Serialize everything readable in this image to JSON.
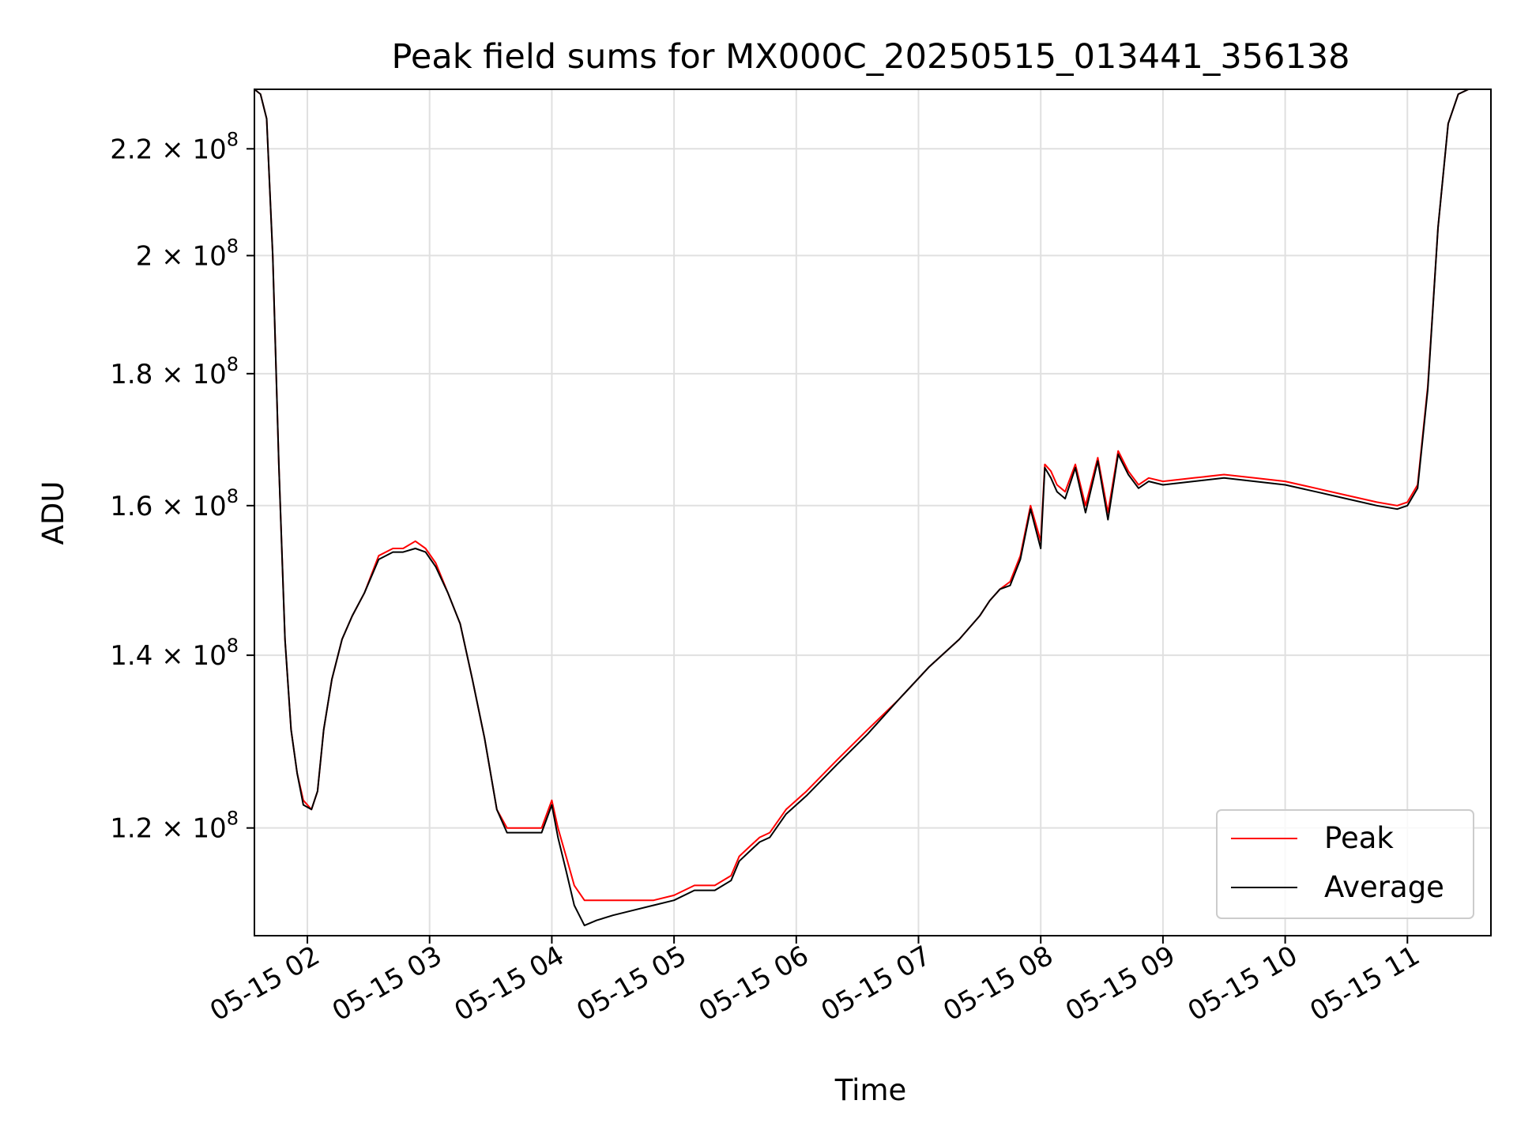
{
  "chart_data": {
    "type": "line",
    "title": "Peak field sums for MX000C_20250515_013441_356138",
    "xlabel": "Time",
    "ylabel": "ADU",
    "x_range": [
      "2025-05-15 01:34",
      "2025-05-15 11:41"
    ],
    "ylim": [
      109000000,
      232000000
    ],
    "yscale": "log",
    "grid": true,
    "legend_position": "lower-right",
    "x_ticks": [
      {
        "value": "2025-05-15 02:00",
        "label": "05-15 02"
      },
      {
        "value": "2025-05-15 03:00",
        "label": "05-15 03"
      },
      {
        "value": "2025-05-15 04:00",
        "label": "05-15 04"
      },
      {
        "value": "2025-05-15 05:00",
        "label": "05-15 05"
      },
      {
        "value": "2025-05-15 06:00",
        "label": "05-15 06"
      },
      {
        "value": "2025-05-15 07:00",
        "label": "05-15 07"
      },
      {
        "value": "2025-05-15 08:00",
        "label": "05-15 08"
      },
      {
        "value": "2025-05-15 09:00",
        "label": "05-15 09"
      },
      {
        "value": "2025-05-15 10:00",
        "label": "05-15 10"
      },
      {
        "value": "2025-05-15 11:00",
        "label": "05-15 11"
      }
    ],
    "y_ticks": [
      {
        "value": 120000000,
        "mantissa": "1.2",
        "base": "10",
        "exponent": "8"
      },
      {
        "value": 140000000,
        "mantissa": "1.4",
        "base": "10",
        "exponent": "8"
      },
      {
        "value": 160000000,
        "mantissa": "1.6",
        "base": "10",
        "exponent": "8"
      },
      {
        "value": 180000000,
        "mantissa": "1.8",
        "base": "10",
        "exponent": "8"
      },
      {
        "value": 200000000,
        "mantissa": "2",
        "base": "10",
        "exponent": "8"
      },
      {
        "value": 220000000,
        "mantissa": "2.2",
        "base": "10",
        "exponent": "8"
      }
    ],
    "series": [
      {
        "name": "Peak",
        "color": "#ff0000",
        "x": [
          "2025-05-15 01:34",
          "2025-05-15 01:37",
          "2025-05-15 01:40",
          "2025-05-15 01:43",
          "2025-05-15 01:46",
          "2025-05-15 01:49",
          "2025-05-15 01:52",
          "2025-05-15 01:55",
          "2025-05-15 01:58",
          "2025-05-15 02:02",
          "2025-05-15 02:05",
          "2025-05-15 02:08",
          "2025-05-15 02:12",
          "2025-05-15 02:17",
          "2025-05-15 02:22",
          "2025-05-15 02:28",
          "2025-05-15 02:35",
          "2025-05-15 02:42",
          "2025-05-15 02:47",
          "2025-05-15 02:53",
          "2025-05-15 02:58",
          "2025-05-15 03:03",
          "2025-05-15 03:09",
          "2025-05-15 03:15",
          "2025-05-15 03:21",
          "2025-05-15 03:27",
          "2025-05-15 03:33",
          "2025-05-15 03:38",
          "2025-05-15 03:44",
          "2025-05-15 03:50",
          "2025-05-15 03:55",
          "2025-05-15 04:00",
          "2025-05-15 04:03",
          "2025-05-15 04:07",
          "2025-05-15 04:11",
          "2025-05-15 04:16",
          "2025-05-15 04:22",
          "2025-05-15 04:30",
          "2025-05-15 04:40",
          "2025-05-15 04:50",
          "2025-05-15 05:00",
          "2025-05-15 05:10",
          "2025-05-15 05:20",
          "2025-05-15 05:28",
          "2025-05-15 05:32",
          "2025-05-15 05:37",
          "2025-05-15 05:42",
          "2025-05-15 05:47",
          "2025-05-15 05:55",
          "2025-05-15 06:05",
          "2025-05-15 06:20",
          "2025-05-15 06:35",
          "2025-05-15 06:50",
          "2025-05-15 07:05",
          "2025-05-15 07:20",
          "2025-05-15 07:30",
          "2025-05-15 07:35",
          "2025-05-15 07:40",
          "2025-05-15 07:45",
          "2025-05-15 07:50",
          "2025-05-15 07:55",
          "2025-05-15 08:00",
          "2025-05-15 08:02",
          "2025-05-15 08:05",
          "2025-05-15 08:08",
          "2025-05-15 08:12",
          "2025-05-15 08:17",
          "2025-05-15 08:22",
          "2025-05-15 08:28",
          "2025-05-15 08:33",
          "2025-05-15 08:38",
          "2025-05-15 08:43",
          "2025-05-15 08:48",
          "2025-05-15 08:53",
          "2025-05-15 09:00",
          "2025-05-15 09:15",
          "2025-05-15 09:30",
          "2025-05-15 09:45",
          "2025-05-15 10:00",
          "2025-05-15 10:15",
          "2025-05-15 10:30",
          "2025-05-15 10:45",
          "2025-05-15 10:55",
          "2025-05-15 11:00",
          "2025-05-15 11:05",
          "2025-05-15 11:10",
          "2025-05-15 11:15",
          "2025-05-15 11:20",
          "2025-05-15 11:25",
          "2025-05-15 11:30",
          "2025-05-15 11:35",
          "2025-05-15 11:40"
        ],
        "values": [
          232000000,
          231000000,
          226000000,
          200000000,
          166000000,
          142000000,
          131000000,
          126000000,
          123000000,
          122000000,
          124000000,
          131000000,
          137000000,
          142000000,
          145000000,
          148000000,
          153000000,
          154000000,
          154000000,
          155000000,
          154000000,
          152000000,
          148000000,
          144000000,
          137000000,
          130000000,
          122000000,
          120000000,
          120000000,
          120000000,
          120000000,
          123000000,
          120000000,
          117000000,
          114000000,
          112500000,
          112500000,
          112500000,
          112500000,
          112500000,
          113000000,
          114000000,
          114000000,
          115000000,
          117000000,
          118000000,
          119000000,
          119500000,
          122000000,
          124000000,
          127500000,
          131000000,
          134500000,
          138500000,
          142000000,
          145000000,
          147000000,
          148500000,
          149500000,
          153000000,
          160000000,
          155000000,
          166000000,
          165000000,
          163000000,
          162000000,
          166000000,
          160000000,
          167000000,
          159000000,
          168000000,
          165000000,
          163000000,
          164000000,
          163500000,
          164000000,
          164500000,
          164000000,
          163500000,
          162500000,
          161500000,
          160500000,
          160000000,
          160500000,
          163000000,
          178000000,
          205000000,
          225000000,
          231000000,
          232000000,
          232000000,
          232000000
        ]
      },
      {
        "name": "Average",
        "color": "#000000",
        "x": [
          "2025-05-15 01:34",
          "2025-05-15 01:37",
          "2025-05-15 01:40",
          "2025-05-15 01:43",
          "2025-05-15 01:46",
          "2025-05-15 01:49",
          "2025-05-15 01:52",
          "2025-05-15 01:55",
          "2025-05-15 01:58",
          "2025-05-15 02:02",
          "2025-05-15 02:05",
          "2025-05-15 02:08",
          "2025-05-15 02:12",
          "2025-05-15 02:17",
          "2025-05-15 02:22",
          "2025-05-15 02:28",
          "2025-05-15 02:35",
          "2025-05-15 02:42",
          "2025-05-15 02:47",
          "2025-05-15 02:53",
          "2025-05-15 02:58",
          "2025-05-15 03:03",
          "2025-05-15 03:09",
          "2025-05-15 03:15",
          "2025-05-15 03:21",
          "2025-05-15 03:27",
          "2025-05-15 03:33",
          "2025-05-15 03:38",
          "2025-05-15 03:44",
          "2025-05-15 03:50",
          "2025-05-15 03:55",
          "2025-05-15 04:00",
          "2025-05-15 04:03",
          "2025-05-15 04:07",
          "2025-05-15 04:11",
          "2025-05-15 04:16",
          "2025-05-15 04:22",
          "2025-05-15 04:30",
          "2025-05-15 04:40",
          "2025-05-15 04:50",
          "2025-05-15 05:00",
          "2025-05-15 05:10",
          "2025-05-15 05:20",
          "2025-05-15 05:28",
          "2025-05-15 05:32",
          "2025-05-15 05:37",
          "2025-05-15 05:42",
          "2025-05-15 05:47",
          "2025-05-15 05:55",
          "2025-05-15 06:05",
          "2025-05-15 06:20",
          "2025-05-15 06:35",
          "2025-05-15 06:50",
          "2025-05-15 07:05",
          "2025-05-15 07:20",
          "2025-05-15 07:30",
          "2025-05-15 07:35",
          "2025-05-15 07:40",
          "2025-05-15 07:45",
          "2025-05-15 07:50",
          "2025-05-15 07:55",
          "2025-05-15 08:00",
          "2025-05-15 08:02",
          "2025-05-15 08:05",
          "2025-05-15 08:08",
          "2025-05-15 08:12",
          "2025-05-15 08:17",
          "2025-05-15 08:22",
          "2025-05-15 08:28",
          "2025-05-15 08:33",
          "2025-05-15 08:38",
          "2025-05-15 08:43",
          "2025-05-15 08:48",
          "2025-05-15 08:53",
          "2025-05-15 09:00",
          "2025-05-15 09:15",
          "2025-05-15 09:30",
          "2025-05-15 09:45",
          "2025-05-15 10:00",
          "2025-05-15 10:15",
          "2025-05-15 10:30",
          "2025-05-15 10:45",
          "2025-05-15 10:55",
          "2025-05-15 11:00",
          "2025-05-15 11:05",
          "2025-05-15 11:10",
          "2025-05-15 11:15",
          "2025-05-15 11:20",
          "2025-05-15 11:25",
          "2025-05-15 11:30",
          "2025-05-15 11:35",
          "2025-05-15 11:40"
        ],
        "values": [
          232000000,
          231000000,
          226000000,
          200000000,
          166000000,
          142000000,
          131000000,
          126000000,
          122500000,
          122000000,
          124000000,
          131000000,
          137000000,
          142000000,
          145000000,
          148000000,
          152500000,
          153500000,
          153500000,
          154000000,
          153500000,
          151500000,
          148000000,
          144000000,
          137000000,
          130000000,
          122000000,
          119500000,
          119500000,
          119500000,
          119500000,
          122500000,
          119000000,
          115500000,
          112000000,
          110000000,
          110500000,
          111000000,
          111500000,
          112000000,
          112500000,
          113500000,
          113500000,
          114500000,
          116500000,
          117500000,
          118500000,
          119000000,
          121500000,
          123500000,
          127000000,
          130500000,
          134500000,
          138500000,
          142000000,
          145000000,
          147000000,
          148500000,
          149000000,
          152500000,
          159500000,
          154000000,
          165500000,
          164000000,
          162000000,
          161000000,
          165500000,
          159000000,
          166500000,
          158000000,
          167500000,
          164500000,
          162500000,
          163500000,
          163000000,
          163500000,
          164000000,
          163500000,
          163000000,
          162000000,
          161000000,
          160000000,
          159500000,
          160000000,
          162500000,
          177500000,
          205000000,
          225000000,
          231000000,
          232000000,
          232000000,
          232000000
        ]
      }
    ]
  }
}
